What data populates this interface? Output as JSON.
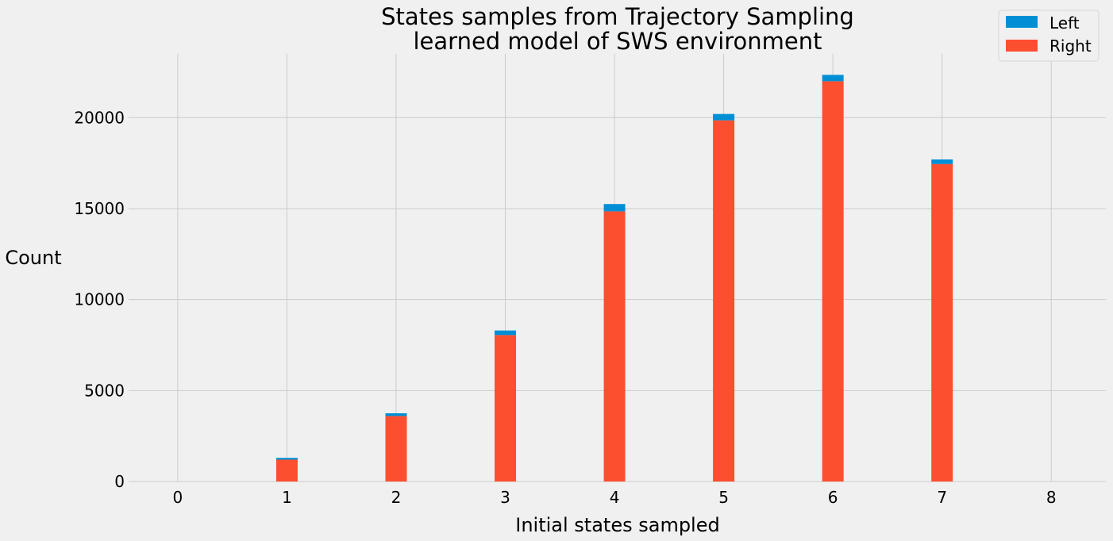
{
  "chart_data": {
    "type": "bar",
    "stacked": true,
    "title": [
      "States samples from Trajectory Sampling",
      "learned model of SWS environment"
    ],
    "xlabel": "Initial states sampled",
    "ylabel": "Count",
    "x": [
      0,
      1,
      2,
      3,
      4,
      5,
      6,
      7,
      8
    ],
    "xlim": [
      -0.45,
      8.5
    ],
    "ylim": [
      0,
      23500
    ],
    "yticks": [
      0,
      5000,
      10000,
      15000,
      20000
    ],
    "grid": true,
    "legend_position": "top-right",
    "series": [
      {
        "name": "Right",
        "color": "#fc4f30",
        "values": [
          0,
          1200,
          3600,
          8050,
          14850,
          19850,
          22000,
          17450,
          0
        ]
      },
      {
        "name": "Left",
        "color": "#008fd5",
        "values": [
          0,
          100,
          150,
          250,
          400,
          350,
          350,
          250,
          0
        ]
      }
    ],
    "legend": [
      {
        "name": "Left",
        "color": "#008fd5"
      },
      {
        "name": "Right",
        "color": "#fc4f30"
      }
    ]
  }
}
